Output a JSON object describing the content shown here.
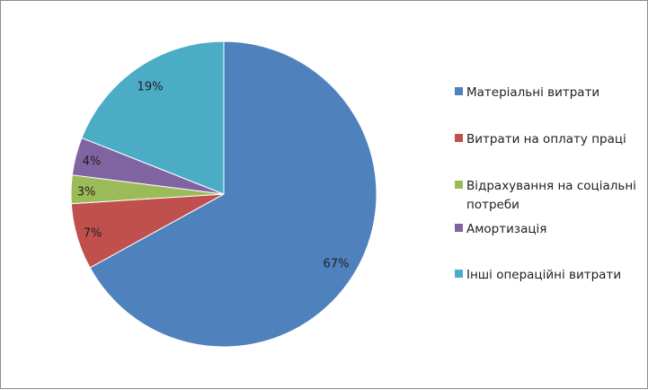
{
  "chart_data": {
    "type": "pie",
    "title": "",
    "slices": [
      {
        "label": "Матеріальні витрати",
        "value": 67,
        "value_label": "67%",
        "color": "#4f81bd"
      },
      {
        "label": "Витрати на оплату праці",
        "value": 7,
        "value_label": "7%",
        "color": "#c0504d"
      },
      {
        "label": "Відрахування на соціальні потреби",
        "value": 3,
        "value_label": "3%",
        "color": "#9bbb59"
      },
      {
        "label": "Амортизація",
        "value": 4,
        "value_label": "4%",
        "color": "#8064a2"
      },
      {
        "label": "Інші операційні витрати",
        "value": 19,
        "value_label": "19%",
        "color": "#4bacc6"
      }
    ],
    "start_angle_deg": 0,
    "direction": "clockwise",
    "legend_position": "right"
  }
}
